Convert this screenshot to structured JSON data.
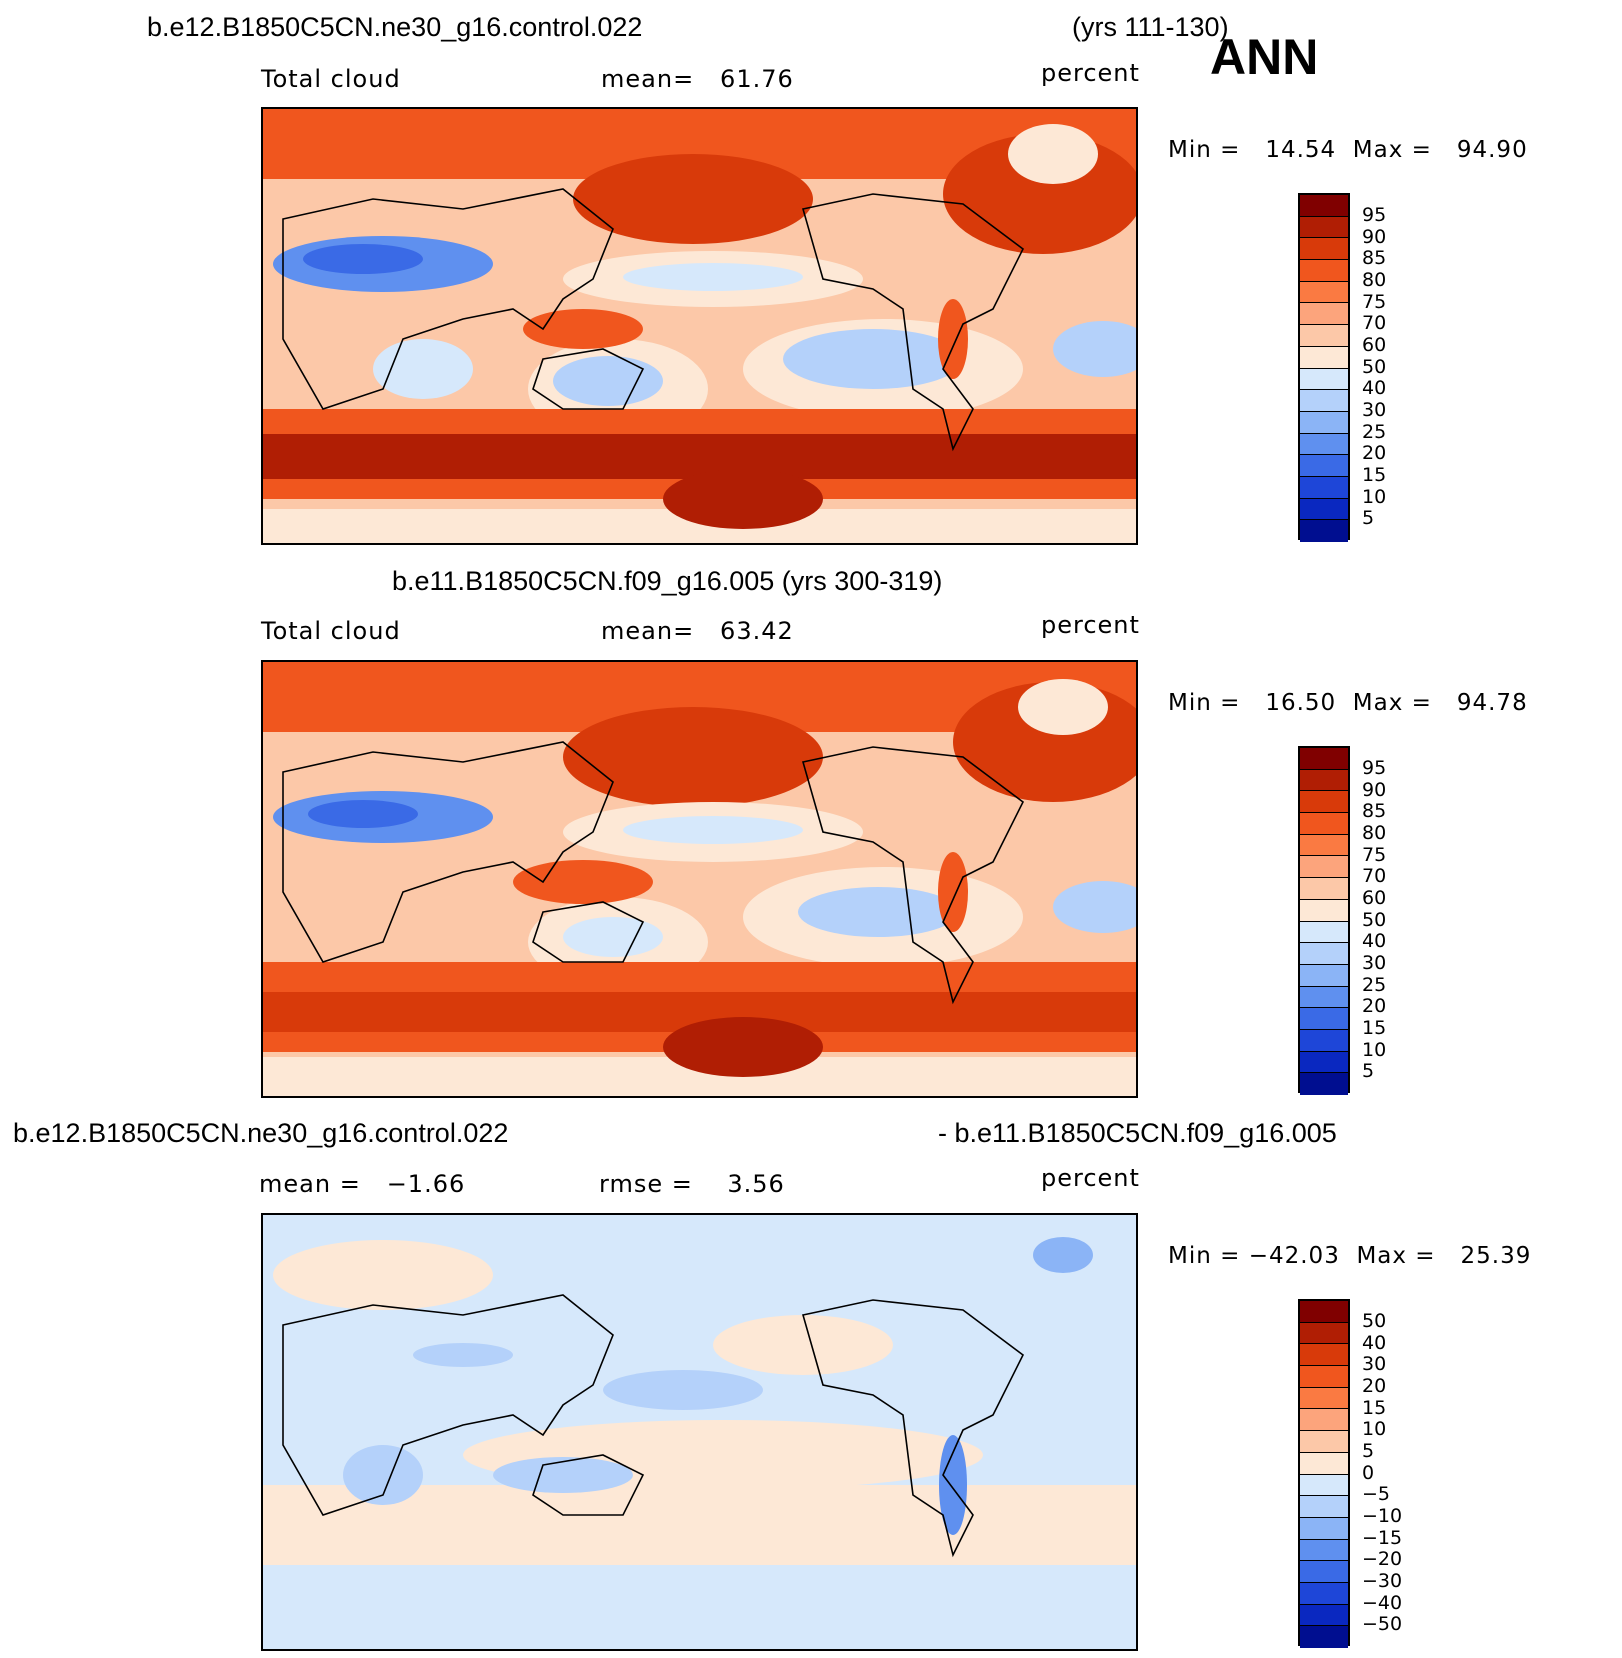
{
  "season": "ANN",
  "panels": [
    {
      "title_left": "b.e12.B1850C5CN.ne30_g16.control.022",
      "title_right": "(yrs 111-130)",
      "var_label": "Total cloud",
      "stat_text": "mean=   61.76",
      "units": "percent",
      "minmax_text": "Min =   14.54  Max =   94.90",
      "colorbar_labels": [
        "95",
        "90",
        "85",
        "80",
        "75",
        "70",
        "60",
        "50",
        "40",
        "30",
        "25",
        "20",
        "15",
        "10",
        "5"
      ]
    },
    {
      "title_center": "b.e11.B1850C5CN.f09_g16.005 (yrs 300-319)",
      "var_label": "Total cloud",
      "stat_text": "mean=   63.42",
      "units": "percent",
      "minmax_text": "Min =   16.50  Max =   94.78",
      "colorbar_labels": [
        "95",
        "90",
        "85",
        "80",
        "75",
        "70",
        "60",
        "50",
        "40",
        "30",
        "25",
        "20",
        "15",
        "10",
        "5"
      ]
    },
    {
      "title_left": "b.e12.B1850C5CN.ne30_g16.control.022",
      "title_right": "- b.e11.B1850C5CN.f09_g16.005",
      "mean_text": "mean =   −1.66",
      "rmse_text": "rmse =    3.56",
      "units": "percent",
      "minmax_text": "Min = −42.03  Max =   25.39",
      "colorbar_labels": [
        "50",
        "40",
        "30",
        "20",
        "15",
        "10",
        "5",
        "0",
        "−5",
        "−10",
        "−15",
        "−20",
        "−30",
        "−40",
        "−50"
      ]
    }
  ],
  "colors": {
    "abs_scale": [
      "#800000",
      "#b01e04",
      "#d83a0a",
      "#f0561e",
      "#fa7a42",
      "#fca47c",
      "#fcc8a8",
      "#fde8d6",
      "#d6e8fb",
      "#b4d1fa",
      "#8bb4f6",
      "#5f90ef",
      "#3a6ae6",
      "#1e46d8",
      "#0a28c0",
      "#000e90"
    ],
    "diff_scale": [
      "#800000",
      "#b01e04",
      "#d83a0a",
      "#f0561e",
      "#fa7a42",
      "#fca47c",
      "#fcc8a8",
      "#fde8d6",
      "#d6e8fb",
      "#b4d1fa",
      "#8bb4f6",
      "#5f90ef",
      "#3a6ae6",
      "#1e46d8",
      "#0a28c0",
      "#000e90"
    ]
  }
}
